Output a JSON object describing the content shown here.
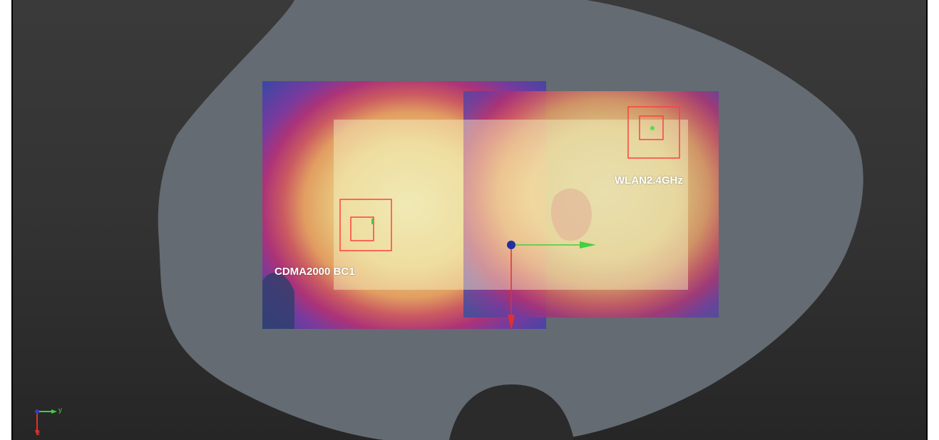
{
  "labels": {
    "cdma": "CDMA2000 BC1",
    "wlan": "WLAN2.4GHz"
  },
  "mini_axes": {
    "y_label": "y",
    "z_label": "z"
  },
  "colors": {
    "background_top": "#3a3a3a",
    "background_bottom": "#262626",
    "phantom": "#646b72",
    "sar_low": "#3646a8",
    "sar_mid": "#c0306a",
    "sar_high": "#f0d070",
    "zoom_scan_box": "#ff4040",
    "axis_x": "#40d040",
    "axis_y": "#e03030",
    "origin": "#2030a0"
  },
  "icons": {
    "origin": "origin-sphere-icon",
    "axis_x": "x-axis-arrow-icon",
    "axis_y": "y-axis-arrow-icon",
    "mini_axes": "orientation-axes-icon"
  }
}
